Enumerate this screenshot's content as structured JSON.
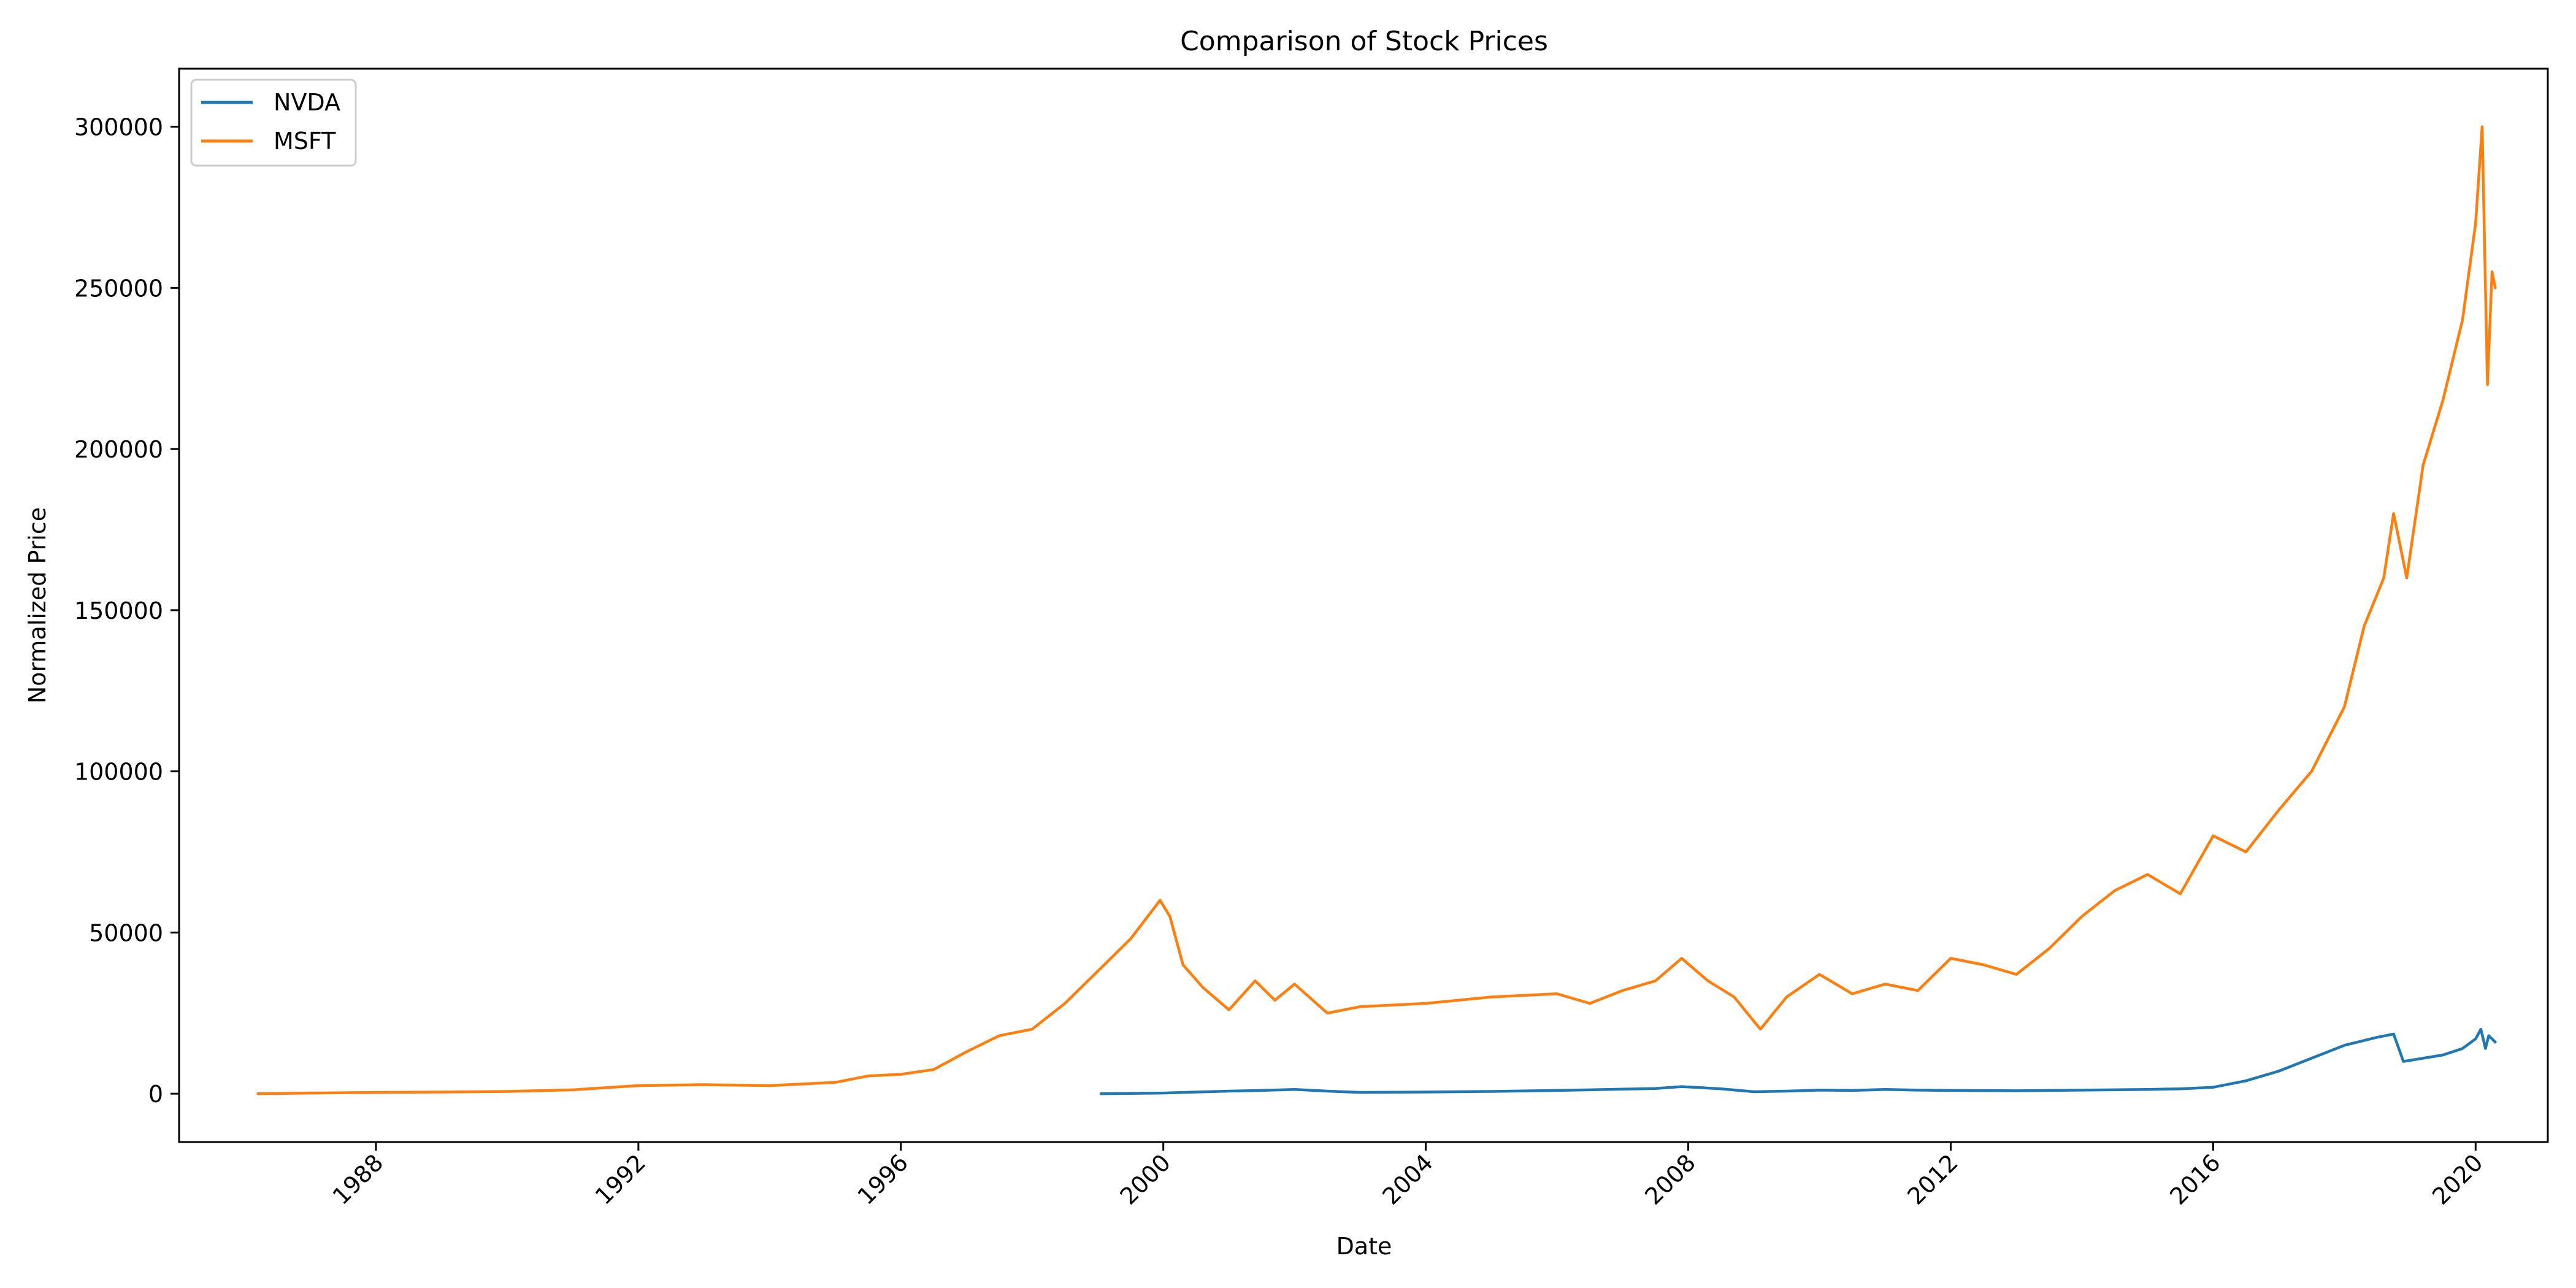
{
  "chart_data": {
    "type": "line",
    "title": "Comparison of Stock Prices",
    "xlabel": "Date",
    "ylabel": "Normalized Price",
    "xlim": [
      1985.0,
      2021.1
    ],
    "ylim": [
      -15000,
      318000
    ],
    "x_ticks": [
      1988,
      1992,
      1996,
      2000,
      2004,
      2008,
      2012,
      2016,
      2020
    ],
    "x_tick_labels": [
      "1988",
      "1992",
      "1996",
      "2000",
      "2004",
      "2008",
      "2012",
      "2016",
      "2020"
    ],
    "y_ticks": [
      0,
      50000,
      100000,
      150000,
      200000,
      250000,
      300000
    ],
    "y_tick_labels": [
      "0",
      "50000",
      "100000",
      "150000",
      "200000",
      "250000",
      "300000"
    ],
    "grid": false,
    "legend": "top-left",
    "series": [
      {
        "name": "NVDA",
        "color": "#1f77b4",
        "x": [
          1999.05,
          2000.0,
          2000.5,
          2001.0,
          2001.5,
          2002.0,
          2002.5,
          2003.0,
          2004.0,
          2005.0,
          2006.0,
          2006.5,
          2007.0,
          2007.5,
          2007.9,
          2008.5,
          2009.0,
          2009.5,
          2010.0,
          2010.5,
          2011.0,
          2011.5,
          2012.0,
          2013.0,
          2014.0,
          2015.0,
          2015.5,
          2016.0,
          2016.5,
          2017.0,
          2017.5,
          2018.0,
          2018.5,
          2018.75,
          2018.9,
          2019.2,
          2019.5,
          2019.8,
          2020.0,
          2020.08,
          2020.15,
          2020.2,
          2020.3
        ],
        "y": [
          0,
          200,
          500,
          800,
          1000,
          1300,
          800,
          400,
          500,
          700,
          1000,
          1200,
          1400,
          1600,
          2200,
          1500,
          600,
          800,
          1100,
          1000,
          1300,
          1100,
          1000,
          900,
          1100,
          1300,
          1500,
          2000,
          4000,
          7000,
          11000,
          15000,
          17500,
          18500,
          10000,
          11000,
          12000,
          14000,
          17000,
          20000,
          14000,
          18000,
          16000
        ]
      },
      {
        "name": "MSFT",
        "color": "#ff7f0e",
        "x": [
          1986.2,
          1987.0,
          1988.0,
          1989.0,
          1990.0,
          1991.0,
          1992.0,
          1993.0,
          1994.0,
          1995.0,
          1995.5,
          1996.0,
          1996.5,
          1997.0,
          1997.5,
          1998.0,
          1998.5,
          1999.0,
          1999.5,
          1999.95,
          2000.1,
          2000.3,
          2000.6,
          2001.0,
          2001.4,
          2001.7,
          2002.0,
          2002.5,
          2003.0,
          2004.0,
          2005.0,
          2006.0,
          2006.5,
          2007.0,
          2007.5,
          2007.9,
          2008.3,
          2008.7,
          2009.1,
          2009.5,
          2010.0,
          2010.5,
          2011.0,
          2011.5,
          2012.0,
          2012.5,
          2013.0,
          2013.5,
          2014.0,
          2014.5,
          2015.0,
          2015.5,
          2016.0,
          2016.5,
          2017.0,
          2017.5,
          2018.0,
          2018.3,
          2018.6,
          2018.75,
          2018.95,
          2019.2,
          2019.5,
          2019.8,
          2020.0,
          2020.1,
          2020.18,
          2020.25,
          2020.3
        ],
        "y": [
          0,
          200,
          400,
          500,
          700,
          1200,
          2500,
          2800,
          2500,
          3500,
          5500,
          6000,
          7500,
          13000,
          18000,
          20000,
          28000,
          38000,
          48000,
          60000,
          55000,
          40000,
          33000,
          26000,
          35000,
          29000,
          34000,
          25000,
          27000,
          28000,
          30000,
          31000,
          28000,
          32000,
          35000,
          42000,
          35000,
          30000,
          20000,
          30000,
          37000,
          31000,
          34000,
          32000,
          42000,
          40000,
          37000,
          45000,
          55000,
          63000,
          68000,
          62000,
          80000,
          75000,
          88000,
          100000,
          120000,
          145000,
          160000,
          180000,
          160000,
          195000,
          215000,
          240000,
          270000,
          300000,
          220000,
          255000,
          250000
        ]
      }
    ]
  }
}
